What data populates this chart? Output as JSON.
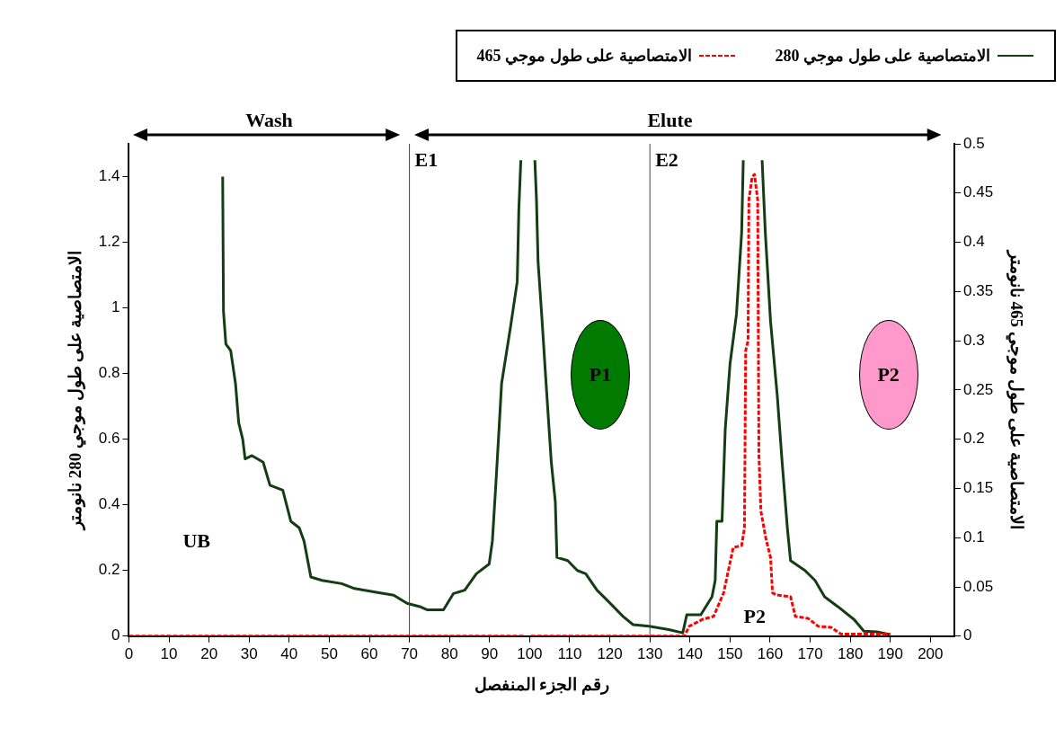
{
  "chart_data": {
    "type": "line",
    "xlabel": "رقم الجزء المنفصل",
    "ylabel": "الامتصاصية على طول موجي 280 نانومتر",
    "y2label": "الامتصاصية على طول موجي 465 نانومتر",
    "xlim": [
      0,
      206
    ],
    "xticks": [
      0,
      10,
      20,
      30,
      40,
      50,
      60,
      70,
      80,
      90,
      100,
      110,
      120,
      130,
      140,
      150,
      160,
      170,
      180,
      190,
      200
    ],
    "ylim": [
      0,
      1.5
    ],
    "yticks": [
      0,
      0.2,
      0.4,
      0.6,
      0.8,
      1,
      1.2,
      1.4
    ],
    "y2lim": [
      0,
      0.5
    ],
    "y2ticks": [
      0,
      0.05,
      0.1,
      0.15,
      0.2,
      0.25,
      0.3,
      0.35,
      0.4,
      0.45,
      0.5
    ],
    "grid": false,
    "legend": "top right",
    "marker": "none",
    "series": [
      {
        "name": "الامتصاصية على طول موجي 280",
        "color": "#143d14",
        "line_style": "solid",
        "axis": "y",
        "x": [
          23.4,
          23.6,
          24.2,
          25.4,
          26.6,
          27.4,
          28.4,
          29,
          30.7,
          33.5,
          35.2,
          38.4,
          40.4,
          42.5,
          43.7,
          45.4,
          48.2,
          53.1,
          56.3,
          61.1,
          66.1,
          69.4,
          72.6,
          74.5,
          78.5,
          81,
          83.8,
          86.7,
          89.9,
          90.7,
          91.6,
          92.4,
          93,
          95.2,
          96.9,
          97.3,
          97.8,
          99.5,
          101.3,
          101.7,
          102.1,
          103,
          104.1,
          105.4,
          106.4,
          106.8,
          109.5,
          111.9,
          114,
          116.8,
          119.3,
          123.3,
          125.8,
          129.8,
          134.7,
          138.2,
          139.2,
          142.7,
          145.5,
          146.3,
          146.7,
          148,
          148.8,
          150,
          151.6,
          152.9,
          153.3,
          155.6,
          158,
          158.8,
          160.1,
          161.8,
          163,
          164.3,
          165.1,
          168.7,
          171.2,
          173.6,
          176.9,
          181,
          183.4,
          186.6,
          189.9
        ],
        "values": [
          1.4,
          0.99,
          0.89,
          0.87,
          0.77,
          0.65,
          0.6,
          0.54,
          0.55,
          0.53,
          0.46,
          0.445,
          0.35,
          0.33,
          0.29,
          0.18,
          0.17,
          0.16,
          0.145,
          0.135,
          0.125,
          0.1,
          0.09,
          0.08,
          0.08,
          0.13,
          0.14,
          0.19,
          0.22,
          0.29,
          0.47,
          0.64,
          0.77,
          0.94,
          1.08,
          1.3,
          1.45,
          null,
          1.45,
          1.33,
          1.14,
          0.98,
          0.77,
          0.53,
          0.41,
          0.24,
          0.23,
          0.2,
          0.19,
          0.14,
          0.11,
          0.06,
          0.035,
          0.03,
          0.02,
          0.01,
          0.065,
          0.065,
          0.12,
          0.17,
          0.35,
          0.35,
          0.63,
          0.83,
          0.98,
          1.23,
          1.45,
          null,
          1.45,
          1.23,
          0.96,
          0.73,
          0.53,
          0.33,
          0.23,
          0.2,
          0.17,
          0.12,
          0.09,
          0.05,
          0.015,
          0.013,
          0.005
        ]
      },
      {
        "name": "الامتصاصية على طول موجي 465",
        "color": "#ff0000",
        "line_style": "dashed",
        "axis": "y2",
        "x": [
          0,
          98.5,
          99.5,
          100.3,
          138.6,
          139.8,
          143.1,
          145.9,
          148.4,
          150.8,
          152.9,
          153.6,
          153.9,
          154.5,
          154.7,
          155.5,
          156.1,
          156.9,
          157.2,
          157.7,
          158.9,
          160.1,
          160.6,
          161.4,
          165.1,
          166.3,
          169.5,
          172,
          175.2,
          177.7,
          190
        ],
        "values": [
          0,
          0,
          null,
          0,
          0,
          0.01,
          0.017,
          0.02,
          0.044,
          0.09,
          0.092,
          0.11,
          0.29,
          0.3,
          0.443,
          0.466,
          0.469,
          0.443,
          0.184,
          0.127,
          0.1,
          0.08,
          0.044,
          0.042,
          0.04,
          0.02,
          0.018,
          0.01,
          0.009,
          0.002,
          0.002
        ]
      }
    ],
    "ref_lines": [
      {
        "axis": "x",
        "value": 70,
        "label": "E1"
      },
      {
        "axis": "x",
        "value": 130,
        "label": "E2"
      }
    ],
    "annotations": [
      "Wash",
      "Elute",
      "P1",
      "P2",
      "UB",
      "P2"
    ]
  }
}
